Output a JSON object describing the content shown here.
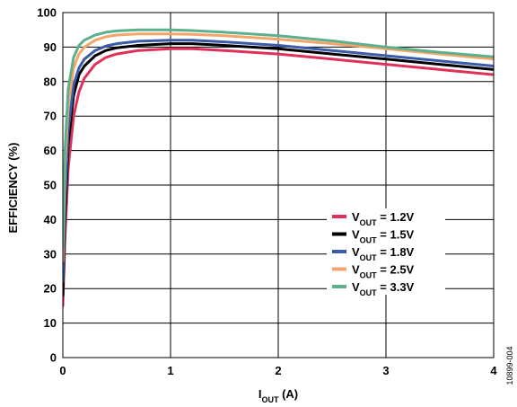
{
  "chart_data": {
    "type": "line",
    "xlabel_main": "I",
    "xlabel_sub": "OUT",
    "xlabel_unit": " (A)",
    "ylabel": "EFFICIENCY (%)",
    "xlim": [
      0,
      4
    ],
    "ylim": [
      0,
      100
    ],
    "x_ticks": [
      0,
      1,
      2,
      3,
      4
    ],
    "y_ticks": [
      0,
      10,
      20,
      30,
      40,
      50,
      60,
      70,
      80,
      90,
      100
    ],
    "grid": true,
    "legend_position": "center-right",
    "figure_id": "10899-004",
    "series": [
      {
        "label_main": "V",
        "label_sub": "OUT",
        "label_value": " = 1.2V",
        "color": "#e0305a",
        "x": [
          0.0,
          0.02,
          0.05,
          0.1,
          0.15,
          0.2,
          0.3,
          0.4,
          0.5,
          0.7,
          1.0,
          1.2,
          1.5,
          2.0,
          2.5,
          3.0,
          3.5,
          4.0
        ],
        "y": [
          15,
          35,
          55,
          70,
          77,
          81,
          85,
          87,
          88,
          89,
          89.5,
          89.5,
          89,
          88,
          86.5,
          85,
          83.5,
          82
        ]
      },
      {
        "label_main": "V",
        "label_sub": "OUT",
        "label_value": " = 1.5V",
        "color": "#000000",
        "x": [
          0.0,
          0.02,
          0.05,
          0.1,
          0.15,
          0.2,
          0.3,
          0.4,
          0.5,
          0.7,
          1.0,
          1.2,
          1.5,
          2.0,
          2.5,
          3.0,
          3.5,
          4.0
        ],
        "y": [
          18,
          40,
          62,
          76,
          82,
          84.5,
          87.5,
          89,
          89.8,
          90.5,
          91,
          91,
          90.5,
          89.5,
          88,
          86.5,
          85,
          83.5
        ]
      },
      {
        "label_main": "V",
        "label_sub": "OUT",
        "label_value": " = 1.8V",
        "color": "#3a5ba8",
        "x": [
          0.0,
          0.02,
          0.05,
          0.1,
          0.15,
          0.2,
          0.3,
          0.4,
          0.5,
          0.7,
          1.0,
          1.2,
          1.5,
          2.0,
          2.5,
          3.0,
          3.5,
          4.0
        ],
        "y": [
          22,
          45,
          66,
          79,
          84,
          86.5,
          89,
          90.3,
          91,
          91.7,
          92,
          92,
          91.5,
          90.5,
          89,
          87.5,
          86,
          84.5
        ]
      },
      {
        "label_main": "V",
        "label_sub": "OUT",
        "label_value": " = 2.5V",
        "color": "#f4a56a",
        "x": [
          0.0,
          0.02,
          0.05,
          0.1,
          0.15,
          0.2,
          0.3,
          0.4,
          0.5,
          0.7,
          1.0,
          1.2,
          1.5,
          2.0,
          2.5,
          3.0,
          3.5,
          4.0
        ],
        "y": [
          28,
          55,
          73,
          84,
          88,
          90,
          92,
          93,
          93.5,
          93.8,
          93.8,
          93.7,
          93.3,
          92.3,
          91,
          89.5,
          88,
          86.5
        ]
      },
      {
        "label_main": "V",
        "label_sub": "OUT",
        "label_value": " = 3.3V",
        "color": "#5db08c",
        "x": [
          0.0,
          0.02,
          0.05,
          0.1,
          0.15,
          0.2,
          0.3,
          0.4,
          0.5,
          0.7,
          1.0,
          1.2,
          1.5,
          2.0,
          2.5,
          3.0,
          3.5,
          4.0
        ],
        "y": [
          32,
          60,
          78,
          87,
          90.5,
          92,
          93.5,
          94.3,
          94.7,
          95,
          95,
          94.8,
          94.3,
          93.3,
          91.8,
          90,
          88.5,
          87.2
        ]
      }
    ]
  }
}
